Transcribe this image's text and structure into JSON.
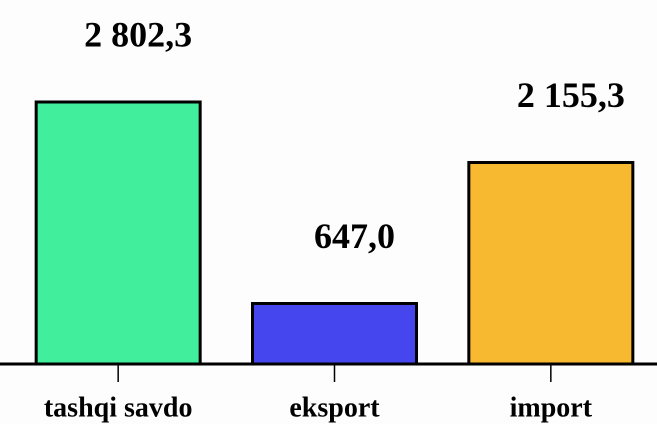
{
  "chart_data": {
    "type": "bar",
    "categories": [
      "tashqi savdo",
      "eksport",
      "import"
    ],
    "values": [
      2802.3,
      647.0,
      2155.3
    ],
    "value_labels": [
      "2 802,3",
      "647,0",
      "2 155,3"
    ],
    "colors": [
      "#40ee9c",
      "#4646ee",
      "#f6b92f"
    ]
  }
}
